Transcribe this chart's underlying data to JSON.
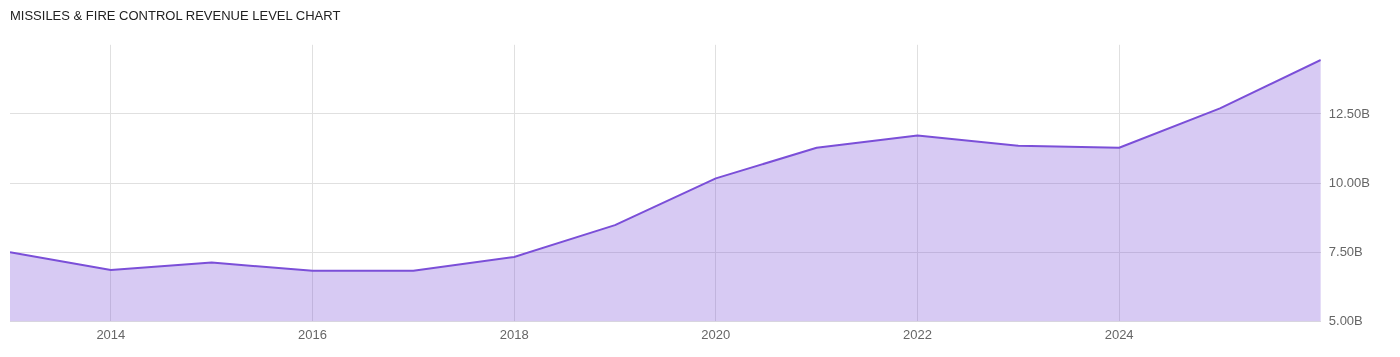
{
  "chart_data": {
    "type": "area",
    "title": "MISSILES & FIRE CONTROL REVENUE LEVEL CHART",
    "x": [
      2013,
      2014,
      2015,
      2016,
      2017,
      2018,
      2019,
      2020,
      2021,
      2022,
      2023,
      2024,
      2025,
      2026
    ],
    "series": [
      {
        "color": "#7b4fd8",
        "values": [
          7.5,
          6.86,
          7.13,
          6.83,
          6.83,
          7.33,
          8.48,
          10.17,
          11.28,
          11.72,
          11.35,
          11.28,
          12.7,
          14.45
        ]
      }
    ],
    "xlim": [
      2013,
      2026
    ],
    "xticks": [
      2014,
      2016,
      2018,
      2020,
      2022,
      2024
    ],
    "ylim": [
      5,
      15
    ],
    "yticks": [
      {
        "value": 5,
        "label": "5.00B"
      },
      {
        "value": 7.5,
        "label": "7.50B"
      },
      {
        "value": 10,
        "label": "10.00B"
      },
      {
        "value": 12.5,
        "label": "12.50B"
      }
    ],
    "grid": true,
    "legend": false,
    "marker": "none"
  }
}
